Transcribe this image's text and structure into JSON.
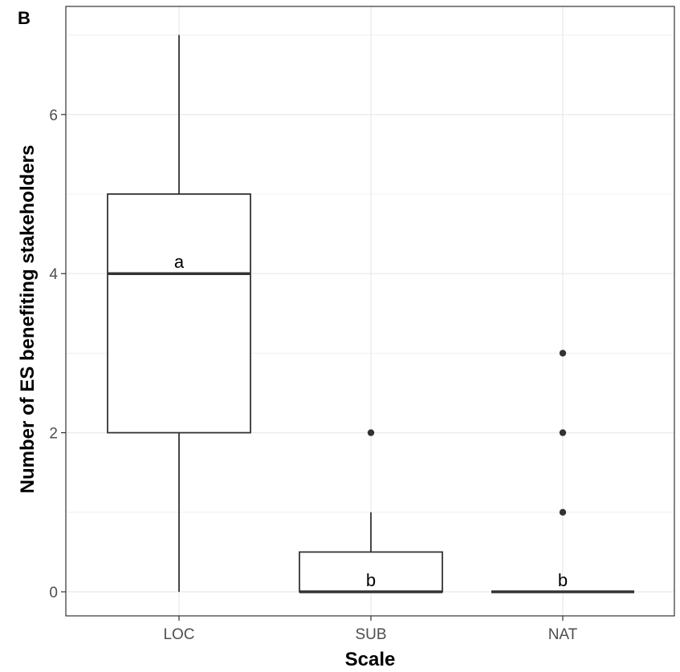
{
  "panel_label": "B",
  "chart_data": {
    "type": "boxplot",
    "xlabel": "Scale",
    "ylabel": "Number of ES benefiting stakeholders",
    "categories": [
      "LOC",
      "SUB",
      "NAT"
    ],
    "ylim": [
      -0.3,
      7
    ],
    "yticks": [
      0,
      2,
      4,
      6
    ],
    "grid": true,
    "boxes": [
      {
        "category": "LOC",
        "whisker_low": 0,
        "q1": 2,
        "median": 4,
        "q3": 5,
        "whisker_high": 7,
        "outliers": [],
        "group_letter": "a"
      },
      {
        "category": "SUB",
        "whisker_low": 0,
        "q1": 0,
        "median": 0,
        "q3": 0.5,
        "whisker_high": 1,
        "outliers": [
          2
        ],
        "group_letter": "b"
      },
      {
        "category": "NAT",
        "whisker_low": 0,
        "q1": 0,
        "median": 0,
        "q3": 0,
        "whisker_high": 0,
        "outliers": [
          1,
          2,
          3
        ],
        "group_letter": "b"
      }
    ],
    "colors": {
      "box_fill": "#ffffff",
      "line": "#333333",
      "grid": "#ebebeb",
      "outlier": "#333333"
    }
  }
}
